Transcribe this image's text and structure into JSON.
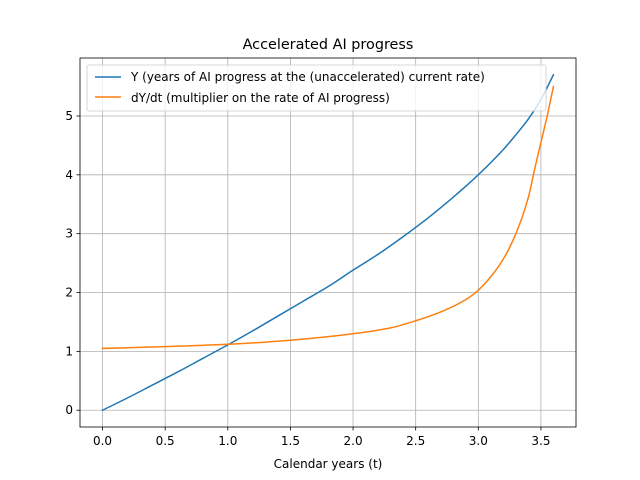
{
  "chart_data": {
    "type": "line",
    "title": "Accelerated AI progress",
    "xlabel": "Calendar years (t)",
    "ylabel": "",
    "xlim": [
      -0.18,
      3.78
    ],
    "ylim": [
      -0.285,
      5.985
    ],
    "xticks": [
      0.0,
      0.5,
      1.0,
      1.5,
      2.0,
      2.5,
      3.0,
      3.5
    ],
    "xtick_labels": [
      "0.0",
      "0.5",
      "1.0",
      "1.5",
      "2.0",
      "2.5",
      "3.0",
      "3.5"
    ],
    "yticks": [
      0,
      1,
      2,
      3,
      4,
      5
    ],
    "ytick_labels": [
      "0",
      "1",
      "2",
      "3",
      "4",
      "5"
    ],
    "grid": true,
    "legend_position": "top-left",
    "series": [
      {
        "name": "Y (years of AI progress at the (unaccelerated) current rate)",
        "color": "#1f77b4",
        "x": [
          0,
          0.2,
          0.4,
          0.6,
          0.8,
          1.0,
          1.2,
          1.4,
          1.6,
          1.8,
          2.0,
          2.2,
          2.4,
          2.6,
          2.8,
          3.0,
          3.2,
          3.3,
          3.4,
          3.5,
          3.6
        ],
        "y": [
          0,
          0.21,
          0.43,
          0.65,
          0.88,
          1.11,
          1.35,
          1.6,
          1.85,
          2.1,
          2.38,
          2.65,
          2.95,
          3.27,
          3.62,
          4.0,
          4.43,
          4.68,
          4.95,
          5.28,
          5.7
        ]
      },
      {
        "name": "dY/dt (multiplier on the rate of AI progress)",
        "color": "#ff7f0e",
        "x": [
          0,
          0.5,
          1.0,
          1.5,
          2.0,
          2.3,
          2.5,
          2.7,
          2.9,
          3.0,
          3.1,
          3.2,
          3.3,
          3.4,
          3.45,
          3.5,
          3.55,
          3.58,
          3.6
        ],
        "y": [
          1.05,
          1.08,
          1.12,
          1.19,
          1.3,
          1.4,
          1.52,
          1.67,
          1.88,
          2.04,
          2.27,
          2.57,
          3.0,
          3.62,
          4.1,
          4.55,
          5.0,
          5.3,
          5.5
        ]
      }
    ]
  }
}
